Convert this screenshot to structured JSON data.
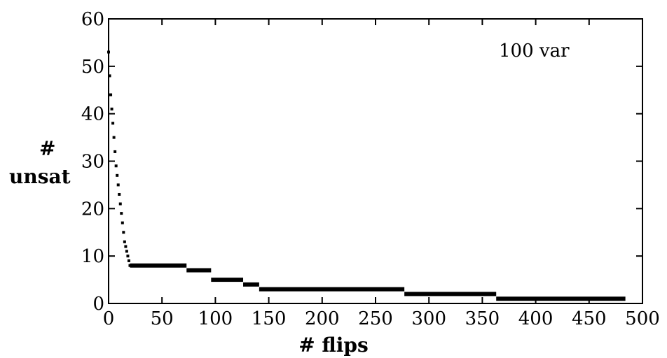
{
  "chart_data": {
    "type": "scatter",
    "title": "",
    "annotation": "100 var",
    "xlabel": "# flips",
    "ylabel_top": "#",
    "ylabel_bottom": "unsat",
    "xlim": [
      0,
      500
    ],
    "ylim": [
      0,
      60
    ],
    "x_ticks": [
      0,
      50,
      100,
      150,
      200,
      250,
      300,
      350,
      400,
      450,
      500
    ],
    "y_ticks": [
      0,
      10,
      20,
      30,
      40,
      50,
      60
    ],
    "grid": false,
    "series": [
      {
        "color": "#000000",
        "descent_points": [
          [
            0,
            53
          ],
          [
            1,
            48
          ],
          [
            2,
            44
          ],
          [
            3,
            41
          ],
          [
            4,
            38
          ],
          [
            5,
            35
          ],
          [
            6,
            32
          ],
          [
            7,
            29
          ],
          [
            8,
            27
          ],
          [
            9,
            25
          ],
          [
            10,
            23
          ],
          [
            11,
            21
          ],
          [
            12,
            19
          ],
          [
            13,
            17
          ],
          [
            14,
            15
          ],
          [
            15,
            13
          ],
          [
            16,
            12
          ],
          [
            17,
            11
          ],
          [
            18,
            10
          ],
          [
            19,
            9
          ],
          [
            20,
            8
          ]
        ],
        "plateaus": [
          {
            "x_start": 20,
            "x_end": 73,
            "y": 8
          },
          {
            "x_start": 73,
            "x_end": 96,
            "y": 7
          },
          {
            "x_start": 96,
            "x_end": 126,
            "y": 5
          },
          {
            "x_start": 126,
            "x_end": 141,
            "y": 4
          },
          {
            "x_start": 141,
            "x_end": 277,
            "y": 3
          },
          {
            "x_start": 277,
            "x_end": 363,
            "y": 2
          },
          {
            "x_start": 363,
            "x_end": 484,
            "y": 1
          }
        ]
      }
    ]
  }
}
